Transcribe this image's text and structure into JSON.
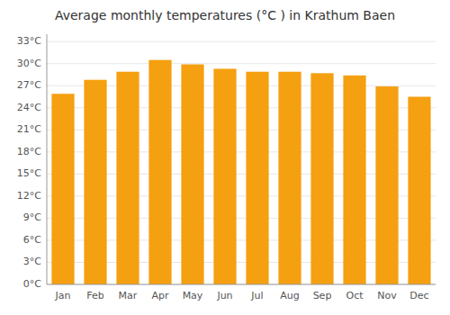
{
  "chart_data": {
    "type": "bar",
    "title": "Average monthly temperatures (°C ) in Krathum Baen",
    "categories": [
      "Jan",
      "Feb",
      "Mar",
      "Apr",
      "May",
      "Jun",
      "Jul",
      "Aug",
      "Sep",
      "Oct",
      "Nov",
      "Dec"
    ],
    "values": [
      25.9,
      27.8,
      28.9,
      30.5,
      29.9,
      29.3,
      28.9,
      28.9,
      28.7,
      28.4,
      26.9,
      25.5
    ],
    "color": "#F5A010",
    "ylim": [
      0,
      34
    ],
    "yticks": [
      {
        "value": 0,
        "label": "0°C"
      },
      {
        "value": 3,
        "label": "3°C"
      },
      {
        "value": 6,
        "label": "6°C"
      },
      {
        "value": 9,
        "label": "9°C"
      },
      {
        "value": 12,
        "label": "12°C"
      },
      {
        "value": 15,
        "label": "15°C"
      },
      {
        "value": 18,
        "label": "18°C"
      },
      {
        "value": 21,
        "label": "21°C"
      },
      {
        "value": 24,
        "label": "24°C"
      },
      {
        "value": 27,
        "label": "27°C"
      },
      {
        "value": 30,
        "label": "30°C"
      },
      {
        "value": 33,
        "label": "33°C"
      }
    ],
    "grid": true
  }
}
